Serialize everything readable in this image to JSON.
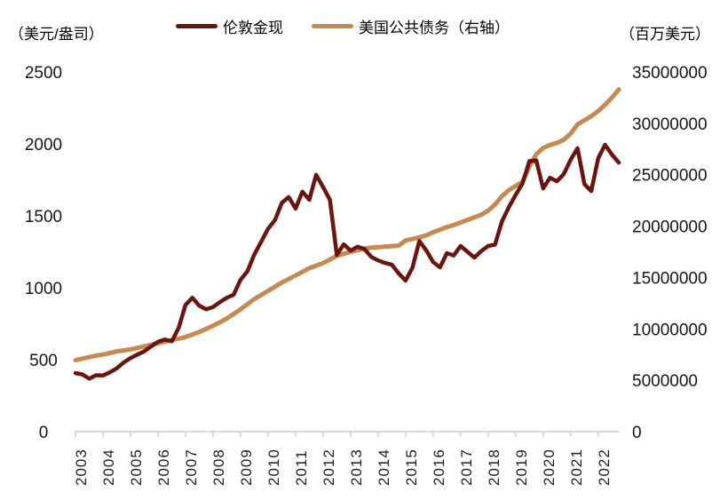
{
  "chart": {
    "left_axis_unit_label": "（美元/盎司）",
    "right_axis_unit_label": "（百万美元）"
  },
  "legend": {
    "items": [
      {
        "label": "伦敦金现",
        "color": "#6C150E"
      },
      {
        "label": "美国公共债务（右轴）",
        "color": "#C9894E"
      }
    ]
  },
  "chart_data": {
    "type": "line",
    "x_frequency": "quarterly",
    "x_labels": [
      "2003",
      "2004",
      "2005",
      "2006",
      "2007",
      "2008",
      "2009",
      "2010",
      "2011",
      "2012",
      "2013",
      "2014",
      "2015",
      "2016",
      "2017",
      "2018",
      "2019",
      "2020",
      "2021",
      "2022"
    ],
    "left_axis": {
      "unit": "（美元/盎司）",
      "range": [
        0,
        2500
      ],
      "ticks": [
        0,
        500,
        1000,
        1500,
        2000,
        2500
      ]
    },
    "right_axis": {
      "unit": "（百万美元）",
      "range": [
        0,
        35000000
      ],
      "ticks": [
        0,
        5000000,
        10000000,
        15000000,
        20000000,
        25000000,
        30000000,
        35000000
      ]
    },
    "grid": false,
    "legend_position": "top",
    "colors": {
      "axis_line": "#D9D9D9",
      "tick_label": "#1F1F1F"
    },
    "series": [
      {
        "name": "伦敦金现",
        "axis": "left",
        "color": "#6C150E",
        "stroke_width": 4.5,
        "values": [
          407,
          398,
          368,
          392,
          390,
          412,
          440,
          480,
          512,
          535,
          558,
          592,
          625,
          640,
          628,
          720,
          880,
          930,
          875,
          850,
          866,
          900,
          930,
          952,
          1055,
          1115,
          1230,
          1320,
          1410,
          1470,
          1590,
          1630,
          1550,
          1668,
          1612,
          1785,
          1700,
          1612,
          1228,
          1302,
          1258,
          1285,
          1270,
          1215,
          1190,
          1172,
          1160,
          1100,
          1050,
          1140,
          1325,
          1260,
          1179,
          1142,
          1240,
          1225,
          1290,
          1250,
          1210,
          1255,
          1290,
          1300,
          1460,
          1560,
          1645,
          1725,
          1880,
          1885,
          1690,
          1765,
          1740,
          1790,
          1890,
          1970,
          1720,
          1672,
          1900,
          1994,
          1925,
          1870
        ]
      },
      {
        "name": "美国公共债务（右轴）",
        "axis": "right",
        "color": "#C9894E",
        "stroke_width": 5,
        "values": [
          6950000,
          7100000,
          7250000,
          7400000,
          7500000,
          7650000,
          7800000,
          7900000,
          8000000,
          8150000,
          8300000,
          8450000,
          8600000,
          8750000,
          8900000,
          9050000,
          9200000,
          9450000,
          9700000,
          10000000,
          10300000,
          10650000,
          11000000,
          11450000,
          11900000,
          12400000,
          12900000,
          13300000,
          13700000,
          14100000,
          14500000,
          14850000,
          15200000,
          15550000,
          15900000,
          16150000,
          16400000,
          16750000,
          17100000,
          17300000,
          17500000,
          17650000,
          17800000,
          17900000,
          17950000,
          18000000,
          18050000,
          18100000,
          18600000,
          18750000,
          18900000,
          19100000,
          19400000,
          19650000,
          19900000,
          20100000,
          20350000,
          20600000,
          20850000,
          21100000,
          21500000,
          22100000,
          22900000,
          23500000,
          23900000,
          24300000,
          25800000,
          27000000,
          27600000,
          27900000,
          28100000,
          28400000,
          29000000,
          29900000,
          30300000,
          30700000,
          31200000,
          31800000,
          32500000,
          33300000
        ]
      }
    ]
  }
}
